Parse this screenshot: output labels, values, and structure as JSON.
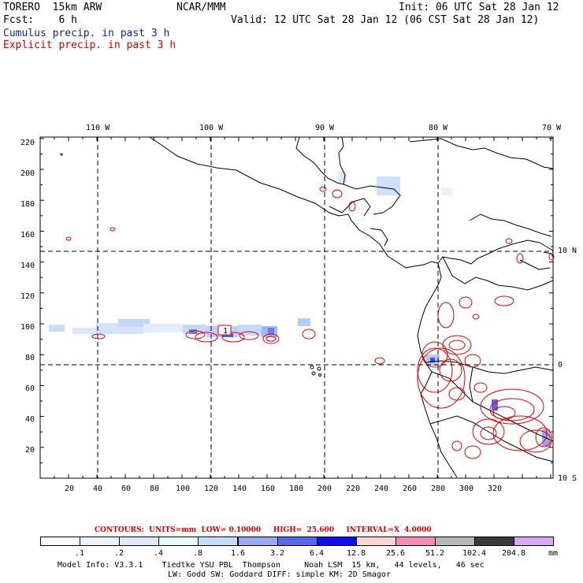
{
  "header": {
    "model": "TORERO  15km ARW",
    "org": "NCAR/MMM",
    "init": "Init: 06 UTC Sat 28 Jan 12",
    "fcst": "Fcst:    6 h",
    "valid": "Valid: 12 UTC Sat 28 Jan 12 (06 CST Sat 28 Jan 12)",
    "legend1": "Cumulus precip. in past 3 h",
    "legend2": "Explicit precip. in past 3 h"
  },
  "map": {
    "lon_labels": [
      "110 W",
      "100 W",
      "90 W",
      "80 W",
      "70 W"
    ],
    "lat_labels": [
      "10 N",
      "0",
      "10 S"
    ],
    "y_ticks": [
      "220",
      "200",
      "180",
      "160",
      "140",
      "120",
      "100",
      "80",
      "60",
      "40",
      "20"
    ],
    "x_ticks": [
      "20",
      "40",
      "60",
      "80",
      "100",
      "120",
      "140",
      "160",
      "180",
      "200",
      "220",
      "240",
      "260",
      "280",
      "300",
      "320"
    ],
    "max_marker": "1"
  },
  "contours_line": {
    "label": "CONTOURS:  UNITS=mm  LOW= 0.10000     HIGH=  25.600     INTERVAL=X  4.0000"
  },
  "colorbar": {
    "colors": [
      "#ffffff",
      "#eef4ff",
      "#dfeafe",
      "#e6fbff",
      "#c5dcfb",
      "#9aa8f4",
      "#5b67ea",
      "#1010e6",
      "#fcd6d2",
      "#f28cb4",
      "#b7b7b7",
      "#3a3a3a",
      "#d9a8f2"
    ],
    "labels": [
      ".1",
      ".2",
      ".4",
      ".8",
      "1.6",
      "3.2",
      "6.4",
      "12.8",
      "25.6",
      "51.2",
      "102.4",
      "204.8"
    ],
    "unit": "mm"
  },
  "footer": {
    "line1": "Model Info: V3.3.1    Tiedtke YSU PBL  Thompson     Noah LSM  15 km,   44 levels,   46 sec",
    "line2": "LW: Godd SW: Goddard DIFF: simple KM: 2D Smagor"
  }
}
